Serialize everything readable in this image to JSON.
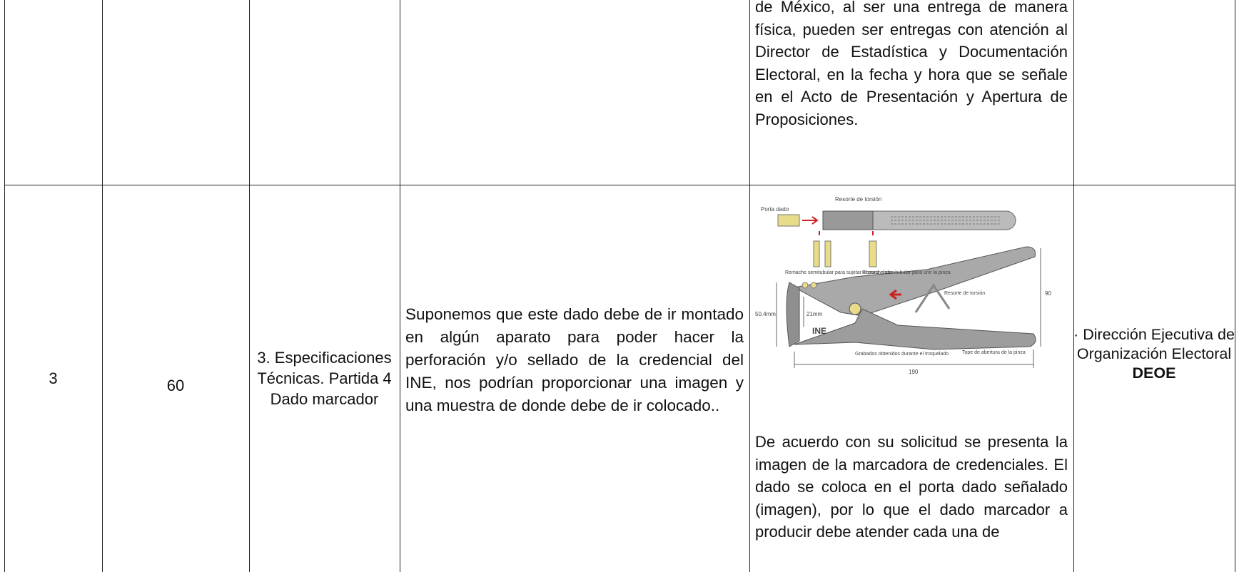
{
  "table": {
    "rows": [
      {
        "response": "de México, al ser una entrega de manera física, pueden ser entregas con atención al Director de Estadística y Documentación Electoral, en la fecha y hora que se señale en el Acto de Presentación y Apertura de Proposiciones."
      },
      {
        "number": "3",
        "quantity": "60",
        "section": "3. Especificaciones Técnicas. Partida 4 Dado marcador",
        "question": "Suponemos que este dado debe de ir montado en algún aparato para poder hacer la perforación y/o sellado de la credencial del INE, nos podrían proporcionar una imagen y una muestra de donde  debe de ir colocado..",
        "figure": {
          "labels": [
            "Porta dado",
            "Resorte de torsión",
            "Remache semitubular para sujetar el porta dado",
            "Remache semitubular para unir la pinza",
            "Resorte de torsión",
            "50.4mm",
            "21mm",
            "90",
            "Grabados obtenidos durante el troquelado",
            "Tope de abertura de la pinza",
            "190",
            "INE"
          ]
        },
        "response": "De acuerdo con su solicitud se presenta la imagen de la marcadora de credenciales. El dado se coloca en el porta dado señalado (imagen), por lo que el dado marcador a producir debe atender cada una de",
        "area": "· Dirección Ejecutiva de Organización Electoral",
        "area_abbr": "DEOE"
      }
    ]
  }
}
